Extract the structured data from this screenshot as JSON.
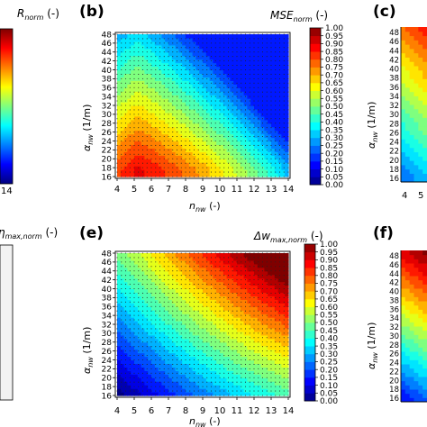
{
  "chart_data": [
    {
      "panel": "(b)",
      "type": "heatmap",
      "colorbar_label": "MSE_norm (-)",
      "colorbar_label_main": "MSE",
      "colorbar_label_sub": "norm",
      "colorbar_label_unit": " (-)",
      "xlabel_main": "n",
      "xlabel_sub": "nw",
      "xlabel_unit": " (-)",
      "ylabel_main": "α",
      "ylabel_sub": "nw",
      "ylabel_unit": " (1/m)",
      "x_ticks": [
        "4",
        "5",
        "6",
        "7",
        "8",
        "9",
        "10",
        "11",
        "12",
        "13",
        "14"
      ],
      "y_ticks": [
        "16",
        "18",
        "20",
        "22",
        "24",
        "26",
        "28",
        "30",
        "32",
        "34",
        "36",
        "38",
        "40",
        "42",
        "44",
        "46",
        "48"
      ],
      "xlim": [
        4,
        14
      ],
      "ylim": [
        16,
        48
      ],
      "colorbar_ticks": [
        "0.00",
        "0.05",
        "0.10",
        "0.15",
        "0.20",
        "0.25",
        "0.30",
        "0.35",
        "0.40",
        "0.45",
        "0.50",
        "0.55",
        "0.60",
        "0.65",
        "0.70",
        "0.75",
        "0.80",
        "0.85",
        "0.90",
        "0.95",
        "1.00"
      ],
      "field_description": "max near n=6, alpha=18; decreasing toward upper-right"
    },
    {
      "panel": "(e)",
      "type": "heatmap",
      "colorbar_label": "Δw_max,norm (-)",
      "colorbar_label_main": "Δw",
      "colorbar_label_sub": "max,norm",
      "colorbar_label_unit": " (-)",
      "xlabel_main": "n",
      "xlabel_sub": "nw",
      "xlabel_unit": " (-)",
      "ylabel_main": "α",
      "ylabel_sub": "nw",
      "ylabel_unit": " (1/m)",
      "x_ticks": [
        "4",
        "5",
        "6",
        "7",
        "8",
        "9",
        "10",
        "11",
        "12",
        "13",
        "14"
      ],
      "y_ticks": [
        "16",
        "18",
        "20",
        "22",
        "24",
        "26",
        "28",
        "30",
        "32",
        "34",
        "36",
        "38",
        "40",
        "42",
        "44",
        "46",
        "48"
      ],
      "xlim": [
        4,
        14
      ],
      "ylim": [
        16,
        48
      ],
      "colorbar_ticks": [
        "0.00",
        "0.05",
        "0.10",
        "0.15",
        "0.20",
        "0.25",
        "0.30",
        "0.35",
        "0.40",
        "0.45",
        "0.50",
        "0.55",
        "0.60",
        "0.65",
        "0.70",
        "0.75",
        "0.80",
        "0.85",
        "0.90",
        "0.95",
        "1.00"
      ],
      "field_description": "increasing toward upper-right; max 1.0 at n=14, alpha=48"
    }
  ],
  "partial_panels": {
    "left_top_label_main": "R",
    "left_top_label_sub": "norm",
    "left_top_label_unit": " (-)",
    "left_top_tick": "14",
    "left_bottom_label_main": "η",
    "left_bottom_label_sub": "max,norm",
    "left_bottom_label_unit": " (-)",
    "right_top_tag": "(c)",
    "right_bottom_tag": "(f)",
    "right_x_tick": "4",
    "right_x_tick_2": "5",
    "right_ylabel_main": "α",
    "right_ylabel_sub": "nw",
    "right_ylabel_unit": " (1/m)"
  },
  "panel_tags": {
    "b": "(b)",
    "e": "(e)"
  },
  "colors": {
    "c0": "#00007f",
    "c1": "#0000ff",
    "c2": "#007fff",
    "c3": "#00ffff",
    "c4": "#7fff7f",
    "c5": "#ffff00",
    "c6": "#ff7f00",
    "c7": "#ff0000",
    "c8": "#7f0000"
  }
}
